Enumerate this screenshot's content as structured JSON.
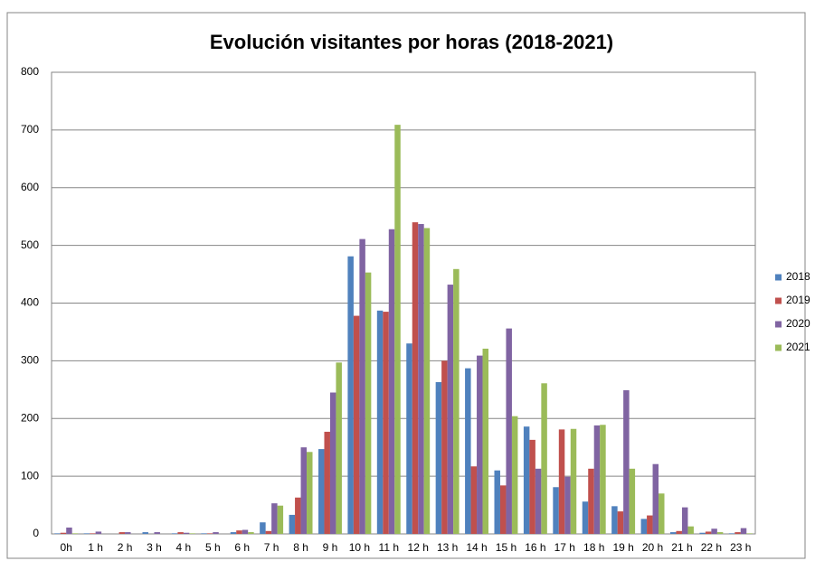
{
  "chart_data": {
    "type": "bar",
    "title": "Evolución visitantes por horas (2018-2021)",
    "categories": [
      "0h",
      "1 h",
      "2 h",
      "3 h",
      "4 h",
      "5 h",
      "6 h",
      "7 h",
      "8 h",
      "9 h",
      "10 h",
      "11 h",
      "12 h",
      "13 h",
      "14 h",
      "15 h",
      "16 h",
      "17 h",
      "18 h",
      "19 h",
      "20 h",
      "21 h",
      "22 h",
      "23 h"
    ],
    "series": [
      {
        "name": "2018",
        "color": "#4f81bd",
        "values": [
          1,
          1,
          0,
          3,
          1,
          1,
          3,
          20,
          33,
          147,
          481,
          387,
          330,
          263,
          287,
          110,
          186,
          81,
          56,
          48,
          26,
          3,
          2,
          1
        ]
      },
      {
        "name": "2019",
        "color": "#c0504d",
        "values": [
          2,
          1,
          3,
          0,
          3,
          1,
          6,
          5,
          63,
          177,
          378,
          385,
          540,
          300,
          117,
          84,
          163,
          181,
          113,
          39,
          32,
          5,
          4,
          3
        ]
      },
      {
        "name": "2020",
        "color": "#8064a2",
        "values": [
          11,
          4,
          3,
          3,
          2,
          3,
          7,
          53,
          150,
          245,
          511,
          528,
          537,
          432,
          309,
          356,
          113,
          99,
          188,
          249,
          121,
          46,
          9,
          10
        ]
      },
      {
        "name": "2021",
        "color": "#9bbb59",
        "values": [
          1,
          0,
          0,
          0,
          1,
          0,
          3,
          49,
          142,
          297,
          453,
          709,
          530,
          459,
          321,
          204,
          261,
          182,
          189,
          113,
          70,
          13,
          3,
          1
        ]
      }
    ],
    "ylim": [
      0,
      800
    ],
    "yticks": [
      0,
      100,
      200,
      300,
      400,
      500,
      600,
      700,
      800
    ],
    "grid": true,
    "legend": "right"
  }
}
